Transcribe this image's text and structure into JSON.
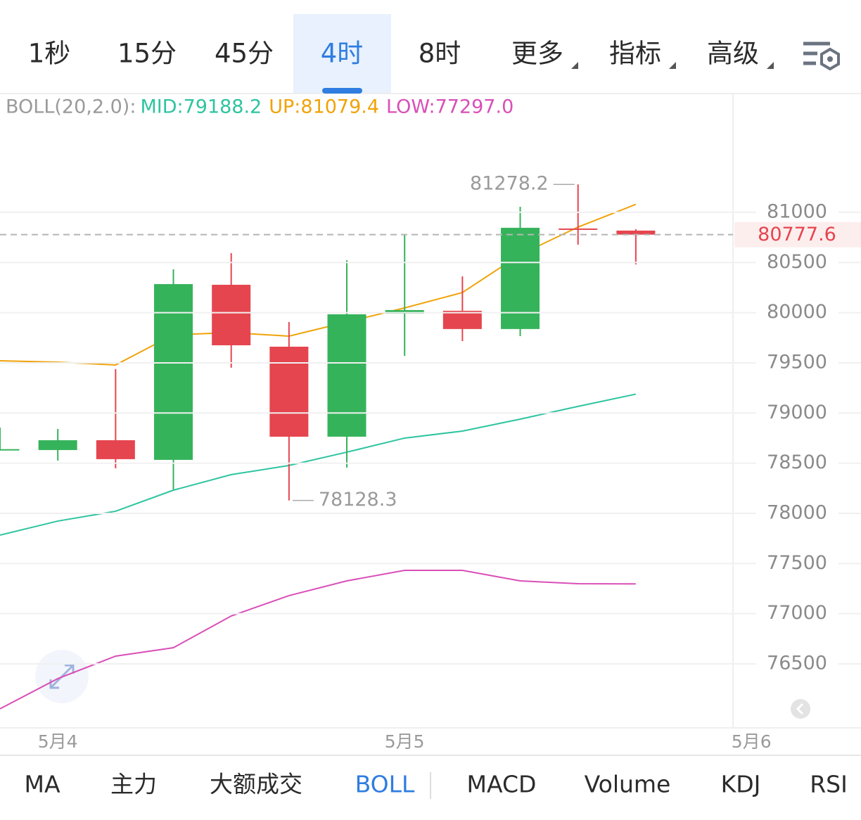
{
  "tabs": {
    "items": [
      "1秒",
      "15分",
      "45分",
      "4时",
      "8时",
      "更多",
      "指标",
      "高级"
    ],
    "selected": 3
  },
  "chart_data": {
    "type": "candlestick",
    "indicator": "BOLL(20,2.0):",
    "categories": [
      null,
      "5月4",
      null,
      null,
      null,
      null,
      null,
      "5月5",
      null,
      null,
      null,
      null,
      null,
      "5月6"
    ],
    "open": [
      78630,
      78631,
      78729,
      78533,
      80278,
      79661,
      78764,
      79991,
      80019,
      79837,
      80839,
      80818,
      null,
      null
    ],
    "high": [
      78855,
      78841,
      79437,
      80432,
      80593,
      79907,
      80523,
      80783,
      80362,
      81056,
      81278.2,
      80832,
      null,
      null
    ],
    "low": [
      78625,
      78526,
      78449,
      78238,
      79451,
      78128.3,
      78456,
      79570,
      79717,
      79766,
      80678,
      80481,
      null,
      null
    ],
    "close": [
      78640,
      78729,
      78540,
      80285,
      79675,
      78764,
      79984,
      80026,
      79837,
      80846,
      80825,
      80777.6,
      null,
      null
    ],
    "up_color": "#35b35b",
    "down_color": "#e5454f",
    "series": [
      {
        "name": "MID:79188.2",
        "color": "#2ec4a0",
        "values": [
          77783,
          77923,
          78021,
          78231,
          78386,
          78477,
          78610,
          78750,
          78820,
          78939,
          79066,
          79188.2,
          null,
          null
        ]
      },
      {
        "name": "UP:81079.4",
        "color": "#f0a30a",
        "values": [
          79521,
          79507,
          79479,
          79780,
          79801,
          79766,
          79907,
          80047,
          80201,
          80579,
          80853,
          81079.4,
          null,
          null
        ]
      },
      {
        "name": "LOW:77297.0",
        "color": "#d94fb8",
        "values": [
          76052,
          76353,
          76577,
          76661,
          76977,
          77180,
          77327,
          77432,
          77432,
          77327,
          77299,
          77297.0,
          null,
          null
        ]
      }
    ],
    "ylim": [
      75862,
      82170
    ],
    "yticks": [
      76500,
      77000,
      77500,
      78000,
      78500,
      79000,
      79500,
      80000,
      80500,
      81000
    ],
    "grid": true,
    "annotations": [
      {
        "index": 10,
        "field": "high"
      },
      {
        "index": 5,
        "field": "low"
      }
    ]
  },
  "bottom_tabs": {
    "items": [
      "MA",
      "主力",
      "大额成交",
      "BOLL",
      "MACD",
      "Volume",
      "KDJ",
      "RSI"
    ],
    "selected": 3
  }
}
